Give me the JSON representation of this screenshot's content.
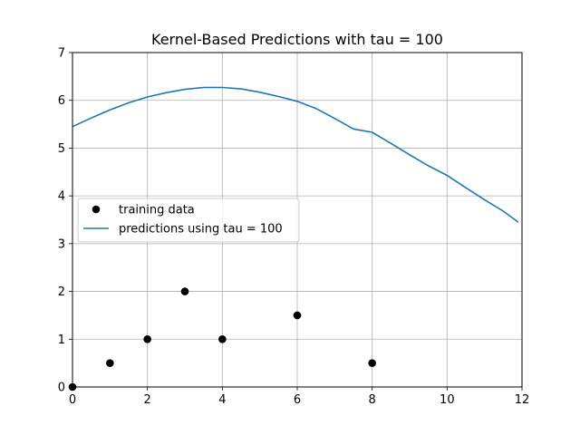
{
  "chart_data": {
    "type": "scatter",
    "title": "Kernel-Based Predictions with tau = 100",
    "xlabel": "",
    "ylabel": "",
    "xlim": [
      0,
      12
    ],
    "ylim": [
      0,
      7
    ],
    "xticks": [
      0,
      2,
      4,
      6,
      8,
      10,
      12
    ],
    "yticks": [
      0,
      1,
      2,
      3,
      4,
      5,
      6,
      7
    ],
    "grid": true,
    "legend_position": "center-left",
    "series": [
      {
        "name": "training data",
        "kind": "scatter",
        "color": "#000000",
        "x": [
          0,
          1,
          2,
          3,
          4,
          6,
          8
        ],
        "y": [
          0,
          0.5,
          1,
          2,
          1,
          1.5,
          0.5
        ]
      },
      {
        "name": "predictions using tau = 100",
        "kind": "line",
        "color": "#1f77b4",
        "x": [
          0,
          0.5,
          1,
          1.5,
          2,
          2.5,
          3,
          3.5,
          4,
          4.5,
          5,
          5.5,
          6,
          6.5,
          7,
          7.5,
          8,
          8.5,
          9,
          9.5,
          10,
          10.5,
          11,
          11.5,
          11.9
        ],
        "y": [
          5.45,
          5.63,
          5.8,
          5.95,
          6.07,
          6.16,
          6.23,
          6.27,
          6.27,
          6.24,
          6.17,
          6.08,
          5.98,
          5.83,
          5.62,
          5.4,
          5.33,
          5.1,
          4.86,
          4.63,
          4.43,
          4.17,
          3.92,
          3.68,
          3.45
        ]
      }
    ]
  }
}
